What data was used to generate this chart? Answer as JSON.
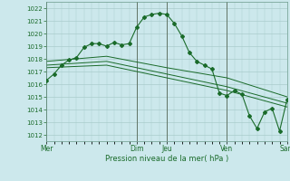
{
  "xlabel": "Pression niveau de la mer( hPa )",
  "ylim": [
    1011.5,
    1022.5
  ],
  "yticks": [
    1012,
    1013,
    1014,
    1015,
    1016,
    1017,
    1018,
    1019,
    1020,
    1021,
    1022
  ],
  "bg_color": "#cce8ec",
  "grid_color": "#aacccc",
  "line_color": "#1a6b2a",
  "day_labels": [
    "Mer",
    "Dim",
    "Jeu",
    "Ven",
    "Sam"
  ],
  "day_positions": [
    0,
    72,
    96,
    144,
    192
  ],
  "xlim": [
    0,
    192
  ],
  "series1": {
    "x": [
      0,
      6,
      12,
      18,
      24,
      30,
      36,
      42,
      48,
      54,
      60,
      66,
      72,
      78,
      84,
      90,
      96,
      102,
      108,
      114,
      120,
      126,
      132,
      138,
      144,
      150,
      156,
      162,
      168,
      174,
      180,
      186,
      192
    ],
    "y": [
      1016.3,
      1016.8,
      1017.5,
      1017.9,
      1018.1,
      1018.9,
      1019.2,
      1019.2,
      1019.0,
      1019.3,
      1019.1,
      1019.2,
      1020.5,
      1021.3,
      1021.5,
      1021.6,
      1021.5,
      1020.8,
      1019.8,
      1018.5,
      1017.8,
      1017.5,
      1017.2,
      1015.3,
      1015.1,
      1015.5,
      1015.2,
      1013.5,
      1012.5,
      1013.8,
      1014.1,
      1012.3,
      1014.8
    ]
  },
  "series2": {
    "x": [
      0,
      48,
      96,
      144,
      192
    ],
    "y": [
      1017.8,
      1018.2,
      1017.3,
      1016.5,
      1015.0
    ]
  },
  "series3": {
    "x": [
      0,
      48,
      96,
      144,
      192
    ],
    "y": [
      1017.5,
      1017.8,
      1016.8,
      1015.8,
      1014.5
    ]
  },
  "series4": {
    "x": [
      0,
      48,
      96,
      144,
      192
    ],
    "y": [
      1017.3,
      1017.5,
      1016.5,
      1015.5,
      1014.2
    ]
  }
}
